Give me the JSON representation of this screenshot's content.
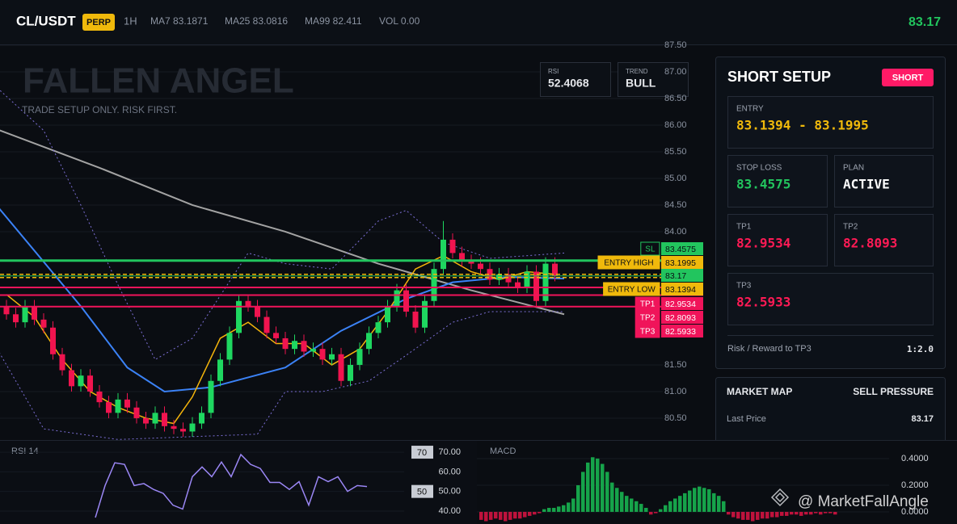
{
  "header": {
    "symbol": "CL/USDT",
    "badge": "PERP",
    "interval": "1H",
    "ma7": "MA7 83.1871",
    "ma25": "MA25 83.0816",
    "ma99": "MA99 82.411",
    "volume": "VOL 0.00",
    "last_price": "83.17"
  },
  "overlay": {
    "title": "FALLEN ANGEL",
    "subtitle": "TRADE SETUP ONLY. RISK FIRST.",
    "rsi_label": "RSI",
    "rsi_value": "52.4068",
    "trend_label": "TREND",
    "trend_value": "BULL",
    "watermark": "@ MarketFallAngle"
  },
  "panel": {
    "title": "SHORT SETUP",
    "badge": "SHORT",
    "entry_label": "ENTRY",
    "entry_value": "83.1394 - 83.1995",
    "stop_label": "STOP LOSS",
    "stop_value": "83.4575",
    "plan_label": "PLAN",
    "plan_value": "ACTIVE",
    "tp1_label": "TP1",
    "tp1_value": "82.9534",
    "tp2_label": "TP2",
    "tp2_value": "82.8093",
    "tp3_label": "TP3",
    "tp3_value": "82.5933",
    "rr_label": "Risk / Reward to TP3",
    "rr_value": "1:2.0",
    "map_title": "MARKET MAP",
    "map_status": "SELL PRESSURE",
    "map_price_label": "Last Price",
    "map_price_value": "83.17"
  },
  "chart_data": [
    {
      "type": "candlestick",
      "ylim": [
        80.09,
        87.5
      ],
      "grid": true,
      "up_color": "#1ed760",
      "down_color": "#f0144f",
      "yticks": [
        {
          "value": 87.5,
          "label": "87.50"
        },
        {
          "value": 87,
          "label": "87.00"
        },
        {
          "value": 86.5,
          "label": "86.50"
        },
        {
          "value": 86,
          "label": "86.00"
        },
        {
          "value": 85.5,
          "label": "85.50"
        },
        {
          "value": 85,
          "label": "85.00"
        },
        {
          "value": 84.5,
          "label": "84.50"
        },
        {
          "value": 84,
          "label": "84.00"
        },
        {
          "value": 81.5,
          "label": "81.50"
        },
        {
          "value": 81,
          "label": "81.00"
        },
        {
          "value": 80.5,
          "label": "80.50"
        }
      ],
      "open": [
        82.6,
        82.45,
        82.3,
        82.6,
        82.35,
        82.2,
        81.7,
        81.4,
        81.1,
        81.3,
        81.0,
        80.8,
        80.6,
        80.85,
        80.7,
        80.5,
        80.4,
        80.6,
        80.35,
        80.3,
        80.25,
        80.4,
        80.6,
        81.2,
        81.6,
        82.1,
        82.7,
        82.6,
        82.4,
        82.1,
        82.0,
        81.8,
        81.95,
        81.75,
        81.8,
        81.6,
        81.7,
        81.2,
        81.5,
        81.8,
        82.1,
        82.3,
        82.6,
        82.9,
        82.5,
        82.2,
        82.7,
        83.3,
        83.85,
        83.6,
        83.45,
        83.4,
        83.3,
        83.1,
        83.2,
        83.05,
        82.95,
        83.25,
        82.7,
        83.4
      ],
      "high": [
        82.72,
        82.57,
        82.72,
        82.72,
        82.47,
        82.32,
        81.82,
        81.52,
        81.42,
        81.42,
        81.12,
        80.92,
        80.97,
        80.97,
        80.82,
        80.62,
        80.72,
        80.72,
        80.47,
        80.42,
        80.52,
        80.72,
        81.32,
        81.72,
        82.22,
        82.82,
        82.82,
        82.72,
        82.52,
        82.22,
        82.12,
        82.07,
        82.07,
        81.92,
        81.92,
        81.82,
        81.82,
        81.62,
        81.92,
        82.22,
        82.42,
        82.72,
        83.02,
        83.02,
        82.62,
        82.82,
        83.42,
        84.2,
        83.97,
        83.72,
        83.57,
        83.52,
        83.42,
        83.32,
        83.32,
        83.17,
        83.37,
        83.37,
        83.52,
        83.52
      ],
      "low": [
        82.35,
        82.2,
        82.2,
        82.25,
        82.1,
        81.6,
        81.3,
        81.0,
        81.0,
        80.9,
        80.7,
        80.5,
        80.5,
        80.6,
        80.4,
        80.3,
        80.3,
        80.25,
        80.2,
        80.15,
        80.15,
        80.3,
        80.5,
        81.1,
        81.5,
        82.0,
        82.5,
        82.3,
        82.0,
        81.9,
        81.7,
        81.7,
        81.65,
        81.65,
        81.5,
        81.5,
        81.1,
        81.1,
        81.4,
        81.7,
        82.0,
        82.2,
        82.5,
        82.4,
        82.1,
        82.1,
        82.6,
        83.2,
        83.5,
        83.35,
        83.3,
        83.2,
        83.0,
        83.0,
        82.95,
        82.85,
        82.85,
        82.6,
        82.6,
        83.07
      ],
      "close": [
        82.45,
        82.3,
        82.6,
        82.35,
        82.2,
        81.7,
        81.4,
        81.1,
        81.3,
        81.0,
        80.8,
        80.6,
        80.85,
        80.7,
        80.5,
        80.4,
        80.6,
        80.35,
        80.3,
        80.25,
        80.4,
        80.6,
        81.2,
        81.6,
        82.1,
        82.7,
        82.6,
        82.4,
        82.1,
        82.0,
        81.8,
        81.95,
        81.75,
        81.8,
        81.6,
        81.7,
        81.2,
        81.5,
        81.8,
        82.1,
        82.3,
        82.6,
        82.9,
        82.5,
        82.2,
        82.7,
        83.3,
        83.85,
        83.6,
        83.45,
        83.4,
        83.3,
        83.1,
        83.2,
        83.05,
        82.95,
        83.25,
        82.7,
        83.4,
        83.17
      ],
      "lines": [
        {
          "color": "#a3a3a3",
          "width": 2,
          "x": [
            -1,
            10,
            20,
            30,
            40,
            50,
            60
          ],
          "values": [
            85.92,
            85.2,
            84.5,
            84.0,
            83.4,
            82.9,
            82.45
          ]
        },
        {
          "color": "#3b82f6",
          "width": 2,
          "x": [
            -1,
            8,
            13,
            17,
            22,
            30,
            36,
            43,
            48,
            54,
            60
          ],
          "values": [
            84.48,
            82.6,
            81.45,
            81.0,
            81.08,
            81.45,
            82.14,
            82.74,
            83.05,
            83.15,
            83.12
          ]
        },
        {
          "color": "#f5b50b",
          "width": 1.5,
          "x": [
            0,
            3,
            6,
            9,
            12,
            15,
            18,
            20,
            23,
            26,
            29,
            32,
            35,
            38,
            41,
            44,
            47,
            50,
            53,
            56,
            59
          ],
          "values": [
            82.82,
            82.4,
            81.6,
            81.0,
            80.7,
            80.5,
            80.4,
            80.9,
            82.0,
            82.3,
            81.9,
            81.9,
            81.5,
            81.8,
            82.5,
            83.3,
            83.55,
            83.25,
            83.1,
            83.25,
            83.2
          ]
        },
        {
          "color": "#7c6fd6",
          "width": 1,
          "dash": true,
          "x": [
            -1,
            4,
            8,
            12,
            16,
            20,
            26,
            30,
            35,
            40,
            43,
            47,
            52,
            60
          ],
          "values": [
            86.7,
            85.9,
            84.5,
            83.0,
            81.6,
            82.0,
            83.6,
            83.4,
            83.3,
            84.2,
            84.4,
            83.8,
            83.5,
            83.6
          ]
        },
        {
          "color": "#7c6fd6",
          "width": 1,
          "dash": true,
          "x": [
            -1,
            4,
            12,
            27,
            30,
            34,
            39,
            43,
            48,
            52,
            60
          ],
          "values": [
            81.8,
            80.3,
            80.1,
            80.2,
            81.0,
            81.0,
            81.2,
            81.68,
            82.3,
            82.5,
            82.5
          ]
        }
      ],
      "levels": [
        {
          "label": "SL",
          "value": 83.4575,
          "color": "#22c55e",
          "width": 3
        },
        {
          "label": "ENTRY HIGH",
          "value": 83.1995,
          "color": "#f0b90b",
          "width": 1.5,
          "dash": true
        },
        {
          "value": 83.17,
          "color": "#22c55e",
          "width": 1
        },
        {
          "label": "ENTRY LOW",
          "value": 83.1394,
          "color": "#f0b90b",
          "width": 1.5,
          "dash": true
        },
        {
          "label": "TP1",
          "value": 82.9534,
          "color": "#f0145a",
          "width": 2
        },
        {
          "label": "TP2",
          "value": 82.8093,
          "color": "#f0145a",
          "width": 2
        },
        {
          "label": "TP3",
          "value": 82.5933,
          "color": "#f0145a",
          "width": 2
        }
      ]
    },
    {
      "type": "line",
      "title": "RSI 14",
      "color": "#9b87f5",
      "ylim": [
        33.4,
        76.2
      ],
      "yticks": [
        {
          "value": 70,
          "label": "70.00"
        },
        {
          "value": 60,
          "label": "60.00"
        },
        {
          "value": 50,
          "label": "50.00"
        },
        {
          "value": 40,
          "label": "40.00"
        }
      ],
      "markers": [
        70,
        50
      ],
      "values": [
        36.7,
        53,
        64.6,
        63.8,
        53,
        54,
        51,
        49,
        43,
        41,
        57.5,
        62.5,
        57.5,
        65,
        57.5,
        68.8,
        63.8,
        61.7,
        54.6,
        54.6,
        51,
        55,
        43,
        57.5,
        55,
        57.5,
        50,
        53,
        52.5
      ]
    },
    {
      "type": "bar",
      "title": "MACD",
      "positive_color": "#16a34a",
      "negative_color": "#be123c",
      "ylim": [
        -0.091,
        0.539
      ],
      "yticks": [
        {
          "value": 0.4,
          "label": "0.4000"
        },
        {
          "value": 0.2,
          "label": "0.2000"
        },
        {
          "value": 0,
          "label": "0.0000"
        }
      ],
      "values": [
        -0.06,
        -0.07,
        -0.06,
        -0.05,
        -0.06,
        -0.07,
        -0.06,
        -0.05,
        -0.05,
        -0.04,
        -0.03,
        -0.02,
        -0.01,
        0.02,
        0.03,
        0.03,
        0.04,
        0.05,
        0.07,
        0.1,
        0.2,
        0.3,
        0.37,
        0.41,
        0.4,
        0.36,
        0.3,
        0.22,
        0.18,
        0.15,
        0.12,
        0.1,
        0.08,
        0.06,
        0.03,
        -0.02,
        -0.01,
        0.02,
        0.05,
        0.08,
        0.1,
        0.12,
        0.14,
        0.16,
        0.18,
        0.19,
        0.18,
        0.17,
        0.14,
        0.12,
        0.08,
        -0.02,
        -0.04,
        -0.05,
        -0.06,
        -0.06,
        -0.07,
        -0.06,
        -0.05,
        -0.05,
        -0.04,
        -0.04,
        -0.03,
        -0.03,
        -0.02,
        -0.02,
        -0.03,
        -0.02,
        -0.02,
        -0.01,
        -0.02,
        -0.01,
        -0.01,
        -0.02
      ]
    }
  ]
}
